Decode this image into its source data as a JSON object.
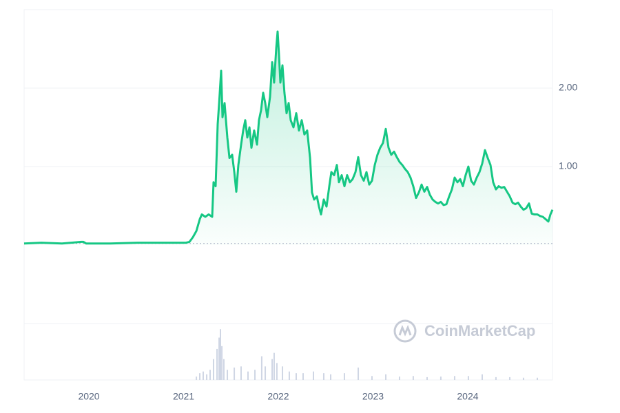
{
  "chart_data": [
    {
      "type": "line",
      "color": "#16c784",
      "x": [
        2019.316,
        2019.498,
        2019.716,
        2019.92,
        2019.942,
        2019.971,
        2020.225,
        2020.516,
        2020.807,
        2021.025,
        2021.062,
        2021.098,
        2021.135,
        2021.171,
        2021.193,
        2021.229,
        2021.265,
        2021.302,
        2021.316,
        2021.338,
        2021.36,
        2021.375,
        2021.396,
        2021.411,
        2021.433,
        2021.462,
        2021.484,
        2021.513,
        2021.535,
        2021.556,
        2021.578,
        2021.607,
        2021.629,
        2021.651,
        2021.673,
        2021.695,
        2021.716,
        2021.745,
        2021.775,
        2021.796,
        2021.818,
        2021.84,
        2021.862,
        2021.884,
        2021.913,
        2021.935,
        2021.956,
        2021.978,
        2021.993,
        2022.007,
        2022.022,
        2022.044,
        2022.065,
        2022.087,
        2022.109,
        2022.131,
        2022.16,
        2022.189,
        2022.218,
        2022.247,
        2022.276,
        2022.305,
        2022.335,
        2022.356,
        2022.378,
        2022.407,
        2022.429,
        2022.451,
        2022.48,
        2022.509,
        2022.538,
        2022.56,
        2022.589,
        2022.618,
        2022.64,
        2022.669,
        2022.698,
        2022.727,
        2022.756,
        2022.785,
        2022.815,
        2022.844,
        2022.873,
        2022.902,
        2022.931,
        2022.96,
        2022.989,
        2023.018,
        2023.047,
        2023.076,
        2023.105,
        2023.135,
        2023.164,
        2023.193,
        2023.222,
        2023.251,
        2023.28,
        2023.309,
        2023.338,
        2023.367,
        2023.396,
        2023.425,
        2023.455,
        2023.484,
        2023.513,
        2023.542,
        2023.571,
        2023.6,
        2023.629,
        2023.658,
        2023.687,
        2023.716,
        2023.745,
        2023.775,
        2023.804,
        2023.833,
        2023.862,
        2023.891,
        2023.92,
        2023.949,
        2023.978,
        2024.007,
        2024.036,
        2024.065,
        2024.095,
        2024.124,
        2024.153,
        2024.182,
        2024.211,
        2024.24,
        2024.269,
        2024.298,
        2024.327,
        2024.356,
        2024.385,
        2024.415,
        2024.444,
        2024.473,
        2024.502,
        2024.531,
        2024.56,
        2024.589,
        2024.618,
        2024.647,
        2024.676,
        2024.705,
        2024.735,
        2024.764,
        2024.793,
        2024.822,
        2024.851,
        2024.873,
        2024.895
      ],
      "values": [
        0.02,
        0.03,
        0.02,
        0.04,
        0.04,
        0.02,
        0.02,
        0.03,
        0.03,
        0.03,
        0.04,
        0.1,
        0.18,
        0.33,
        0.39,
        0.36,
        0.39,
        0.36,
        0.8,
        0.75,
        1.54,
        1.81,
        2.22,
        1.63,
        1.81,
        1.37,
        1.11,
        1.15,
        0.93,
        0.68,
        1.02,
        1.28,
        1.46,
        1.59,
        1.37,
        1.5,
        1.24,
        1.46,
        1.28,
        1.59,
        1.72,
        1.94,
        1.81,
        1.63,
        1.89,
        2.33,
        2.07,
        2.51,
        2.72,
        2.42,
        2.07,
        2.29,
        1.94,
        1.68,
        1.81,
        1.59,
        1.5,
        1.68,
        1.46,
        1.59,
        1.41,
        1.46,
        1.11,
        0.67,
        0.58,
        0.62,
        0.49,
        0.39,
        0.58,
        0.49,
        0.75,
        0.93,
        0.89,
        1.02,
        0.8,
        0.89,
        0.75,
        0.89,
        0.8,
        0.84,
        0.93,
        1.12,
        0.89,
        0.82,
        0.93,
        0.77,
        0.82,
        1.02,
        1.15,
        1.24,
        1.3,
        1.48,
        1.24,
        1.15,
        1.19,
        1.12,
        1.06,
        1.02,
        0.97,
        0.93,
        0.86,
        0.75,
        0.6,
        0.67,
        0.77,
        0.68,
        0.74,
        0.64,
        0.58,
        0.55,
        0.53,
        0.55,
        0.51,
        0.52,
        0.62,
        0.71,
        0.86,
        0.8,
        0.84,
        0.75,
        0.89,
        1.0,
        0.82,
        0.77,
        0.86,
        0.93,
        1.04,
        1.21,
        1.11,
        1.02,
        0.8,
        0.71,
        0.75,
        0.73,
        0.74,
        0.68,
        0.62,
        0.54,
        0.52,
        0.54,
        0.49,
        0.45,
        0.47,
        0.53,
        0.4,
        0.39,
        0.39,
        0.37,
        0.36,
        0.33,
        0.3,
        0.39,
        0.45
      ],
      "xlim": [
        2019.316,
        2024.895
      ],
      "xticks": [
        2020,
        2021,
        2022,
        2023,
        2024
      ],
      "ylim": [
        -1,
        3
      ],
      "yticks": [
        {
          "value": 1,
          "label": "1.00"
        },
        {
          "value": 2,
          "label": "2.00"
        }
      ],
      "grid": true
    },
    {
      "type": "bar",
      "color": "#cfd6e4",
      "x": [
        2021.135,
        2021.171,
        2021.207,
        2021.244,
        2021.28,
        2021.316,
        2021.353,
        2021.375,
        2021.389,
        2021.404,
        2021.425,
        2021.462,
        2021.535,
        2021.607,
        2021.68,
        2021.753,
        2021.825,
        2021.862,
        2021.935,
        2021.956,
        2021.985,
        2022.044,
        2022.116,
        2022.189,
        2022.262,
        2022.371,
        2022.48,
        2022.553,
        2022.698,
        2022.844,
        2022.989,
        2023.135,
        2023.28,
        2023.425,
        2023.571,
        2023.716,
        2023.862,
        2024.007,
        2024.153,
        2024.298,
        2024.444,
        2024.589,
        2024.735
      ],
      "values": [
        6,
        12,
        15,
        10,
        18,
        37,
        55,
        75,
        90,
        60,
        37,
        18,
        22,
        24,
        15,
        18,
        42,
        24,
        37,
        48,
        30,
        24,
        15,
        12,
        12,
        15,
        12,
        10,
        12,
        22,
        7,
        10,
        6,
        7,
        5,
        6,
        7,
        7,
        10,
        5,
        5,
        4,
        4
      ],
      "xlim": [
        2019.316,
        2024.895
      ],
      "ylim": [
        0,
        100
      ]
    }
  ],
  "watermark": "CoinMarketCap"
}
